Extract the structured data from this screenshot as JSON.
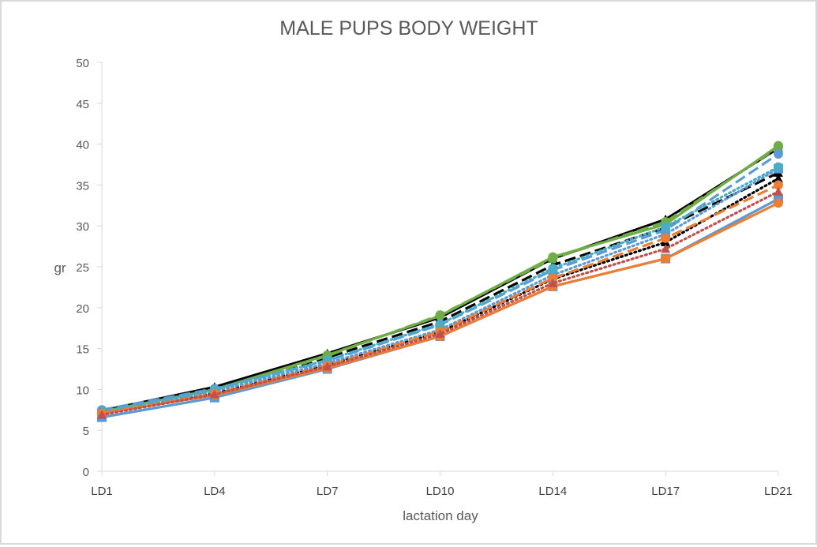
{
  "chart_data": {
    "type": "line",
    "title": "MALE PUPS BODY WEIGHT",
    "xlabel": "lactation day",
    "ylabel": "gr",
    "categories": [
      "LD1",
      "LD4",
      "LD7",
      "LD10",
      "LD14",
      "LD17",
      "LD21"
    ],
    "ylim": [
      0,
      50
    ],
    "yticks": [
      0,
      5,
      10,
      15,
      20,
      25,
      30,
      35,
      40,
      45,
      50
    ],
    "grid": false,
    "legend": "none",
    "series": [
      {
        "color": "#000000",
        "dash": "solid",
        "marker": "triangle",
        "values": [
          7.4,
          10.3,
          14.4,
          18.8,
          26.0,
          30.8,
          39.5
        ]
      },
      {
        "color": "#000000",
        "dash": "dash",
        "marker": "triangle",
        "values": [
          7.2,
          10.1,
          13.9,
          18.3,
          25.2,
          29.8,
          36.5
        ]
      },
      {
        "color": "#000000",
        "dash": "dot",
        "marker": "triangle",
        "values": [
          7.0,
          9.5,
          13.0,
          17.0,
          23.5,
          28.0,
          35.8
        ]
      },
      {
        "color": "#70ad47",
        "dash": "solid",
        "marker": "circle",
        "values": [
          7.3,
          10.0,
          14.2,
          19.0,
          26.2,
          30.2,
          39.8
        ]
      },
      {
        "color": "#70ad47",
        "dash": "dash",
        "marker": "circle",
        "values": [
          7.1,
          9.9,
          14.1,
          19.1,
          26.0,
          30.5,
          39.6
        ]
      },
      {
        "color": "#5b9bd5",
        "dash": "solid",
        "marker": "square",
        "values": [
          6.6,
          9.0,
          12.5,
          16.5,
          22.6,
          26.0,
          33.3
        ]
      },
      {
        "color": "#5b9bd5",
        "dash": "dash",
        "marker": "circle",
        "values": [
          7.5,
          10.1,
          13.5,
          17.9,
          24.6,
          29.5,
          38.8
        ]
      },
      {
        "color": "#5b9bd5",
        "dash": "dot",
        "marker": "square",
        "values": [
          7.0,
          9.8,
          13.2,
          17.3,
          24.0,
          29.0,
          37.0
        ]
      },
      {
        "color": "#4bacc6",
        "dash": "dot",
        "marker": "circle",
        "values": [
          7.2,
          10.0,
          13.6,
          18.0,
          24.8,
          29.9,
          37.2
        ]
      },
      {
        "color": "#ed7d31",
        "dash": "solid",
        "marker": "circle",
        "values": [
          7.1,
          9.3,
          12.6,
          16.5,
          22.6,
          26.0,
          32.8
        ]
      },
      {
        "color": "#ed7d31",
        "dash": "dash",
        "marker": "circle",
        "values": [
          7.0,
          9.5,
          12.9,
          17.1,
          23.6,
          28.5,
          35.0
        ]
      },
      {
        "color": "#c0504d",
        "dash": "dot",
        "marker": "triangle",
        "values": [
          6.9,
          9.4,
          12.8,
          16.8,
          23.0,
          27.2,
          34.2
        ]
      }
    ]
  }
}
